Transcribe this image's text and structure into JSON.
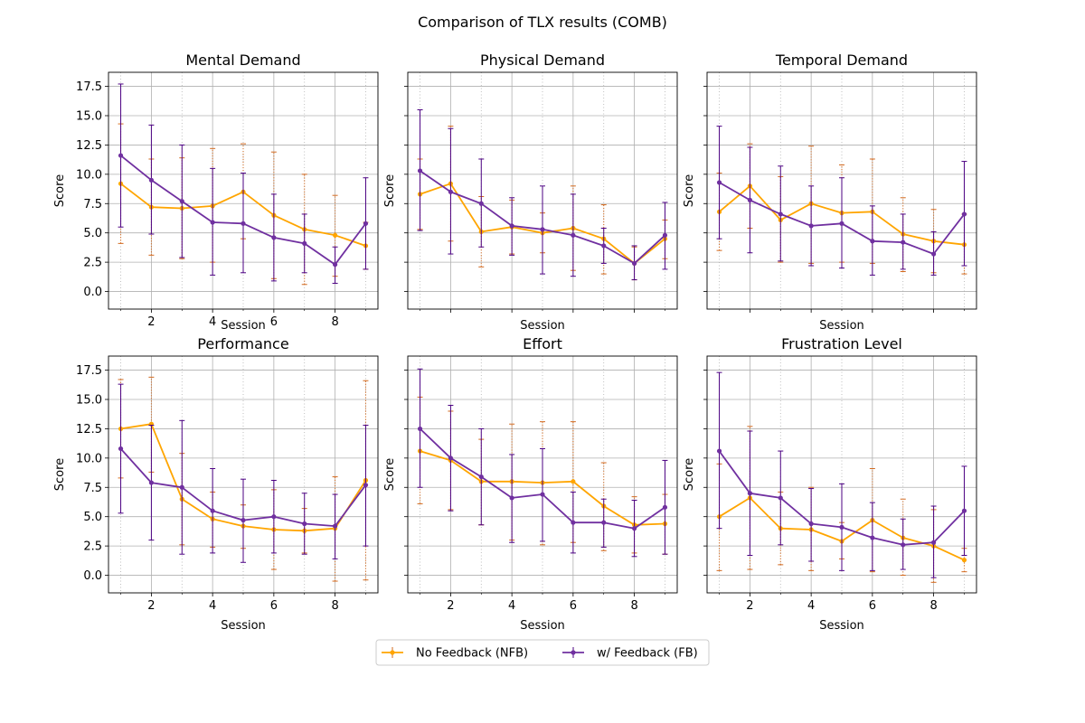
{
  "figure": {
    "title": "Comparison of TLX results (COMB)"
  },
  "colors": {
    "nfb": "#FFA500",
    "nfb_err": "#D2691E",
    "fb": "#7030A0",
    "fb_err": "#4B0082",
    "grid": "#B0B0B0"
  },
  "legend": {
    "placement": "bottom-center, below plots",
    "entries": [
      "No Feedback (NFB)",
      "w/ Feedback (FB)"
    ]
  },
  "chart_data": [
    {
      "type": "line",
      "title": "Mental Demand",
      "xlabel": "Session",
      "ylabel": "Score",
      "x": [
        1,
        2,
        3,
        4,
        5,
        6,
        7,
        8,
        9
      ],
      "xticks": [
        "2",
        "4",
        "6",
        "8"
      ],
      "yticks": [
        "0.0",
        "2.5",
        "5.0",
        "7.5",
        "10.0",
        "12.5",
        "15.0",
        "17.5"
      ],
      "ylim": [
        -1.5,
        18.7
      ],
      "xlim": [
        0.6,
        9.4
      ],
      "grid": true,
      "series": [
        {
          "name": "No Feedback (NFB)",
          "values": [
            9.2,
            7.2,
            7.1,
            7.3,
            8.5,
            6.5,
            5.3,
            4.8,
            3.9
          ],
          "err_low": [
            4.1,
            3.1,
            2.8,
            2.5,
            4.5,
            1.1,
            0.6,
            1.3,
            1.9
          ],
          "err_high": [
            14.3,
            11.3,
            11.4,
            12.2,
            12.6,
            11.9,
            10.0,
            8.2,
            5.9
          ]
        },
        {
          "name": "w/ Feedback (FB)",
          "values": [
            11.6,
            9.5,
            7.7,
            5.9,
            5.8,
            4.6,
            4.1,
            2.3,
            5.8
          ],
          "err_low": [
            5.5,
            4.9,
            2.9,
            1.4,
            1.6,
            0.9,
            1.6,
            0.7,
            1.9
          ],
          "err_high": [
            17.7,
            14.2,
            12.5,
            10.5,
            10.1,
            8.3,
            6.6,
            3.8,
            9.7
          ]
        }
      ]
    },
    {
      "type": "line",
      "title": "Physical Demand",
      "xlabel": "Session",
      "ylabel": "Score",
      "x": [
        1,
        2,
        3,
        4,
        5,
        6,
        7,
        8,
        9
      ],
      "xticks": [],
      "yticks": [],
      "ylim": [
        -1.5,
        18.7
      ],
      "xlim": [
        0.6,
        9.4
      ],
      "grid": true,
      "series": [
        {
          "name": "No Feedback (NFB)",
          "values": [
            8.3,
            9.2,
            5.1,
            5.5,
            5.0,
            5.4,
            4.5,
            2.4,
            4.5
          ],
          "err_low": [
            5.3,
            4.3,
            2.1,
            3.2,
            3.3,
            1.8,
            1.5,
            1.0,
            2.8
          ],
          "err_high": [
            11.3,
            14.1,
            8.1,
            7.8,
            6.7,
            9.0,
            7.4,
            3.8,
            6.1
          ]
        },
        {
          "name": "w/ Feedback (FB)",
          "values": [
            10.3,
            8.5,
            7.5,
            5.6,
            5.3,
            4.8,
            3.9,
            2.4,
            4.8
          ],
          "err_low": [
            5.2,
            3.2,
            3.8,
            3.1,
            1.5,
            1.3,
            2.4,
            1.0,
            1.9
          ],
          "err_high": [
            15.5,
            13.9,
            11.3,
            8.0,
            9.0,
            8.3,
            5.4,
            3.9,
            7.6
          ]
        }
      ]
    },
    {
      "type": "line",
      "title": "Temporal Demand",
      "xlabel": "Session",
      "ylabel": "Score",
      "x": [
        1,
        2,
        3,
        4,
        5,
        6,
        7,
        8,
        9
      ],
      "xticks": [],
      "yticks": [],
      "ylim": [
        -1.5,
        18.7
      ],
      "xlim": [
        0.6,
        9.4
      ],
      "grid": true,
      "series": [
        {
          "name": "No Feedback (NFB)",
          "values": [
            6.8,
            9.0,
            6.1,
            7.5,
            6.7,
            6.8,
            4.9,
            4.3,
            4.0
          ],
          "err_low": [
            3.5,
            5.4,
            2.5,
            2.4,
            2.5,
            2.4,
            1.7,
            1.6,
            1.5
          ],
          "err_high": [
            10.1,
            12.6,
            9.8,
            12.4,
            10.8,
            11.3,
            8.0,
            7.0,
            6.6
          ]
        },
        {
          "name": "w/ Feedback (FB)",
          "values": [
            9.3,
            7.8,
            6.6,
            5.6,
            5.8,
            4.3,
            4.2,
            3.2,
            6.6
          ],
          "err_low": [
            4.5,
            3.3,
            2.6,
            2.2,
            2.0,
            1.4,
            1.9,
            1.4,
            2.2
          ],
          "err_high": [
            14.1,
            12.3,
            10.7,
            9.0,
            9.7,
            7.3,
            6.6,
            5.1,
            11.1
          ]
        }
      ]
    },
    {
      "type": "line",
      "title": "Performance",
      "xlabel": "Session",
      "ylabel": "Score",
      "x": [
        1,
        2,
        3,
        4,
        5,
        6,
        7,
        8,
        9
      ],
      "xticks": [
        "2",
        "4",
        "6",
        "8"
      ],
      "yticks": [
        "0.0",
        "2.5",
        "5.0",
        "7.5",
        "10.0",
        "12.5",
        "15.0",
        "17.5"
      ],
      "ylim": [
        -1.5,
        18.7
      ],
      "xlim": [
        0.6,
        9.4
      ],
      "grid": true,
      "series": [
        {
          "name": "No Feedback (NFB)",
          "values": [
            12.5,
            12.9,
            6.5,
            4.8,
            4.2,
            3.9,
            3.8,
            4.0,
            8.1
          ],
          "err_low": [
            8.3,
            8.8,
            2.6,
            2.4,
            2.3,
            0.5,
            1.9,
            -0.5,
            -0.4
          ],
          "err_high": [
            16.7,
            16.9,
            10.4,
            7.1,
            6.0,
            7.3,
            5.7,
            8.4,
            16.6
          ]
        },
        {
          "name": "w/ Feedback (FB)",
          "values": [
            10.8,
            7.9,
            7.5,
            5.5,
            4.7,
            5.0,
            4.4,
            4.2,
            7.7
          ],
          "err_low": [
            5.3,
            3.0,
            1.8,
            1.9,
            1.1,
            1.9,
            1.8,
            1.4,
            2.5
          ],
          "err_high": [
            16.3,
            12.8,
            13.2,
            9.1,
            8.2,
            8.1,
            7.0,
            6.9,
            12.8
          ]
        }
      ]
    },
    {
      "type": "line",
      "title": "Effort",
      "xlabel": "Session",
      "ylabel": "Score",
      "x": [
        1,
        2,
        3,
        4,
        5,
        6,
        7,
        8,
        9
      ],
      "xticks": [
        "2",
        "4",
        "6",
        "8"
      ],
      "yticks": [],
      "ylim": [
        -1.5,
        18.7
      ],
      "xlim": [
        0.6,
        9.4
      ],
      "grid": true,
      "series": [
        {
          "name": "No Feedback (NFB)",
          "values": [
            10.6,
            9.8,
            8.0,
            8.0,
            7.9,
            8.0,
            5.9,
            4.3,
            4.4
          ],
          "err_low": [
            6.1,
            5.6,
            4.3,
            3.0,
            2.6,
            2.8,
            2.1,
            1.9,
            1.8
          ],
          "err_high": [
            15.2,
            14.0,
            11.6,
            12.9,
            13.1,
            13.1,
            9.6,
            6.7,
            6.9
          ]
        },
        {
          "name": "w/ Feedback (FB)",
          "values": [
            12.5,
            10.0,
            8.4,
            6.6,
            6.9,
            4.5,
            4.5,
            4.0,
            5.8
          ],
          "err_low": [
            7.5,
            5.5,
            4.3,
            2.8,
            2.9,
            1.9,
            2.4,
            1.6,
            1.8
          ],
          "err_high": [
            17.6,
            14.5,
            12.5,
            10.3,
            10.8,
            7.1,
            6.5,
            6.4,
            9.8
          ]
        }
      ]
    },
    {
      "type": "line",
      "title": "Frustration Level",
      "xlabel": "Session",
      "ylabel": "Score",
      "x": [
        1,
        2,
        3,
        4,
        5,
        6,
        7,
        8,
        9
      ],
      "xticks": [
        "2",
        "4",
        "6",
        "8"
      ],
      "yticks": [],
      "ylim": [
        -1.5,
        18.7
      ],
      "xlim": [
        0.6,
        9.4
      ],
      "grid": true,
      "series": [
        {
          "name": "No Feedback (NFB)",
          "values": [
            5.0,
            6.6,
            4.0,
            3.9,
            2.9,
            4.7,
            3.2,
            2.5,
            1.3
          ],
          "err_low": [
            0.4,
            0.5,
            0.9,
            0.4,
            1.4,
            0.3,
            0.0,
            -0.6,
            0.3
          ],
          "err_high": [
            9.5,
            12.7,
            7.1,
            7.5,
            4.5,
            9.1,
            6.5,
            5.6,
            2.3
          ]
        },
        {
          "name": "w/ Feedback (FB)",
          "values": [
            10.6,
            7.0,
            6.6,
            4.4,
            4.1,
            3.2,
            2.6,
            2.8,
            5.5
          ],
          "err_low": [
            4.0,
            1.7,
            2.6,
            1.2,
            0.4,
            0.4,
            0.5,
            -0.2,
            1.7
          ],
          "err_high": [
            17.3,
            12.3,
            10.6,
            7.4,
            7.8,
            6.2,
            4.8,
            5.9,
            9.3
          ]
        }
      ]
    }
  ]
}
